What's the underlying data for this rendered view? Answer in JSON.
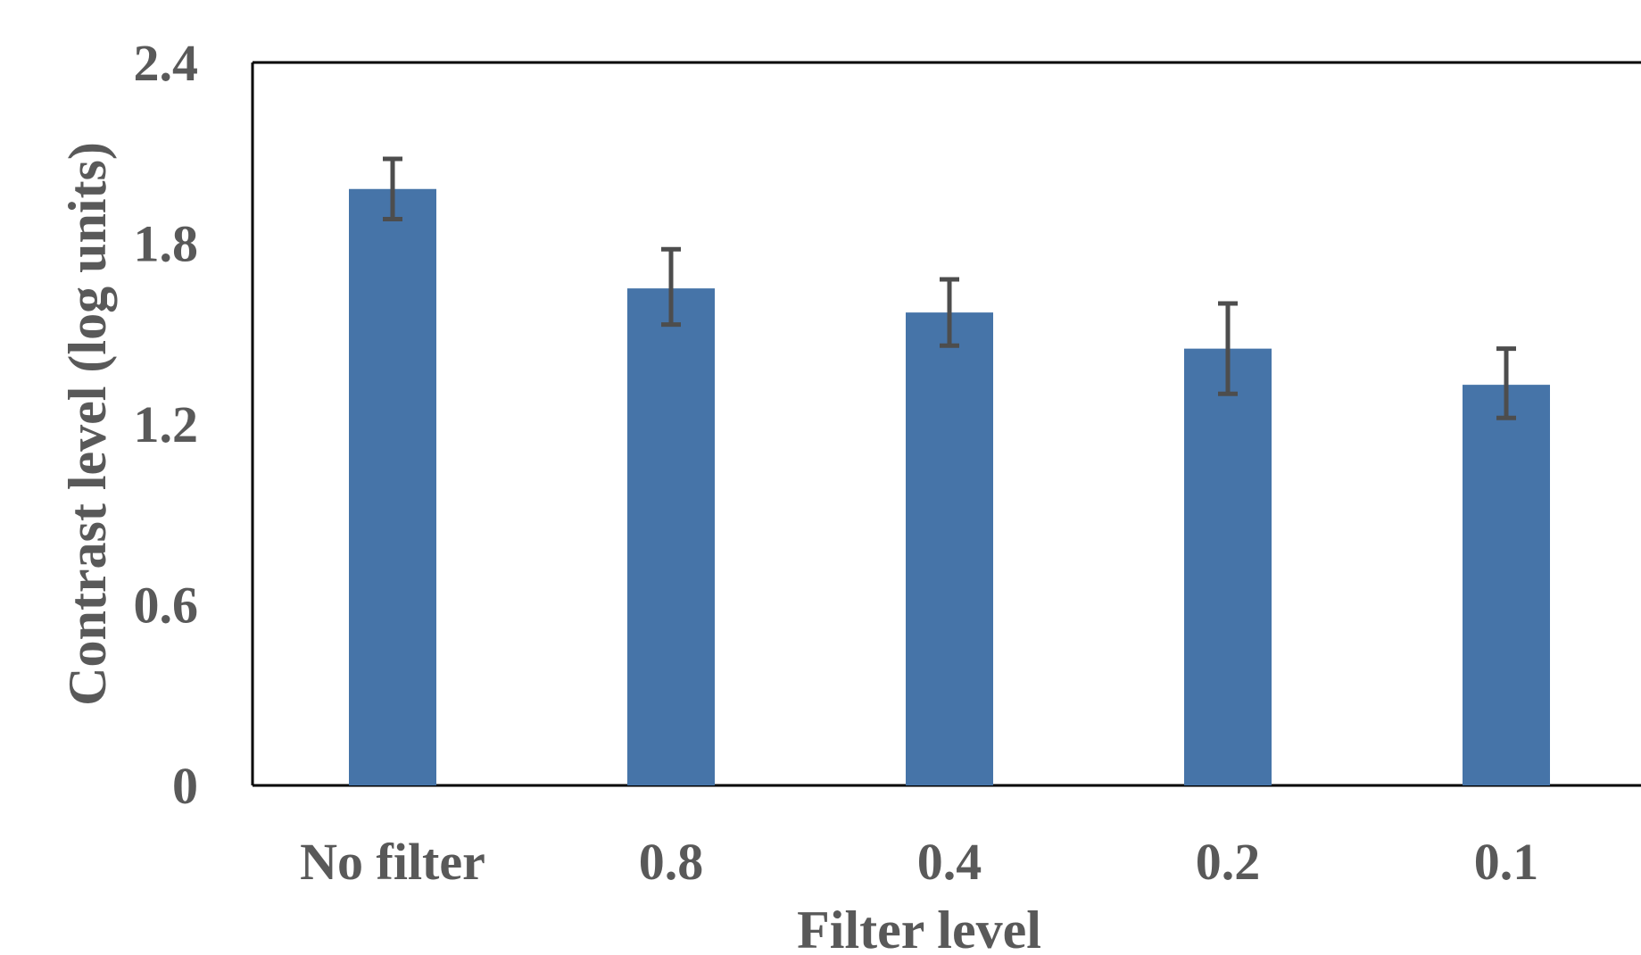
{
  "chart_data": {
    "type": "bar",
    "categories": [
      "No filter",
      "0.8",
      "0.4",
      "0.2",
      "0.1"
    ],
    "values": [
      1.98,
      1.65,
      1.57,
      1.45,
      1.33
    ],
    "error_low": [
      0.1,
      0.12,
      0.11,
      0.15,
      0.11
    ],
    "error_high": [
      0.1,
      0.13,
      0.11,
      0.15,
      0.12
    ],
    "xlabel": "Filter level",
    "ylabel": "Contrast level (log units)",
    "ylim": [
      0,
      2.4
    ],
    "yticks": [
      "0",
      "0.6",
      "1.2",
      "1.8",
      "2.4"
    ],
    "grid": false,
    "colors": {
      "bar": "#4674A8",
      "error_bar": "#4D4D4D",
      "text": "#595959",
      "axis": "#000000"
    }
  }
}
